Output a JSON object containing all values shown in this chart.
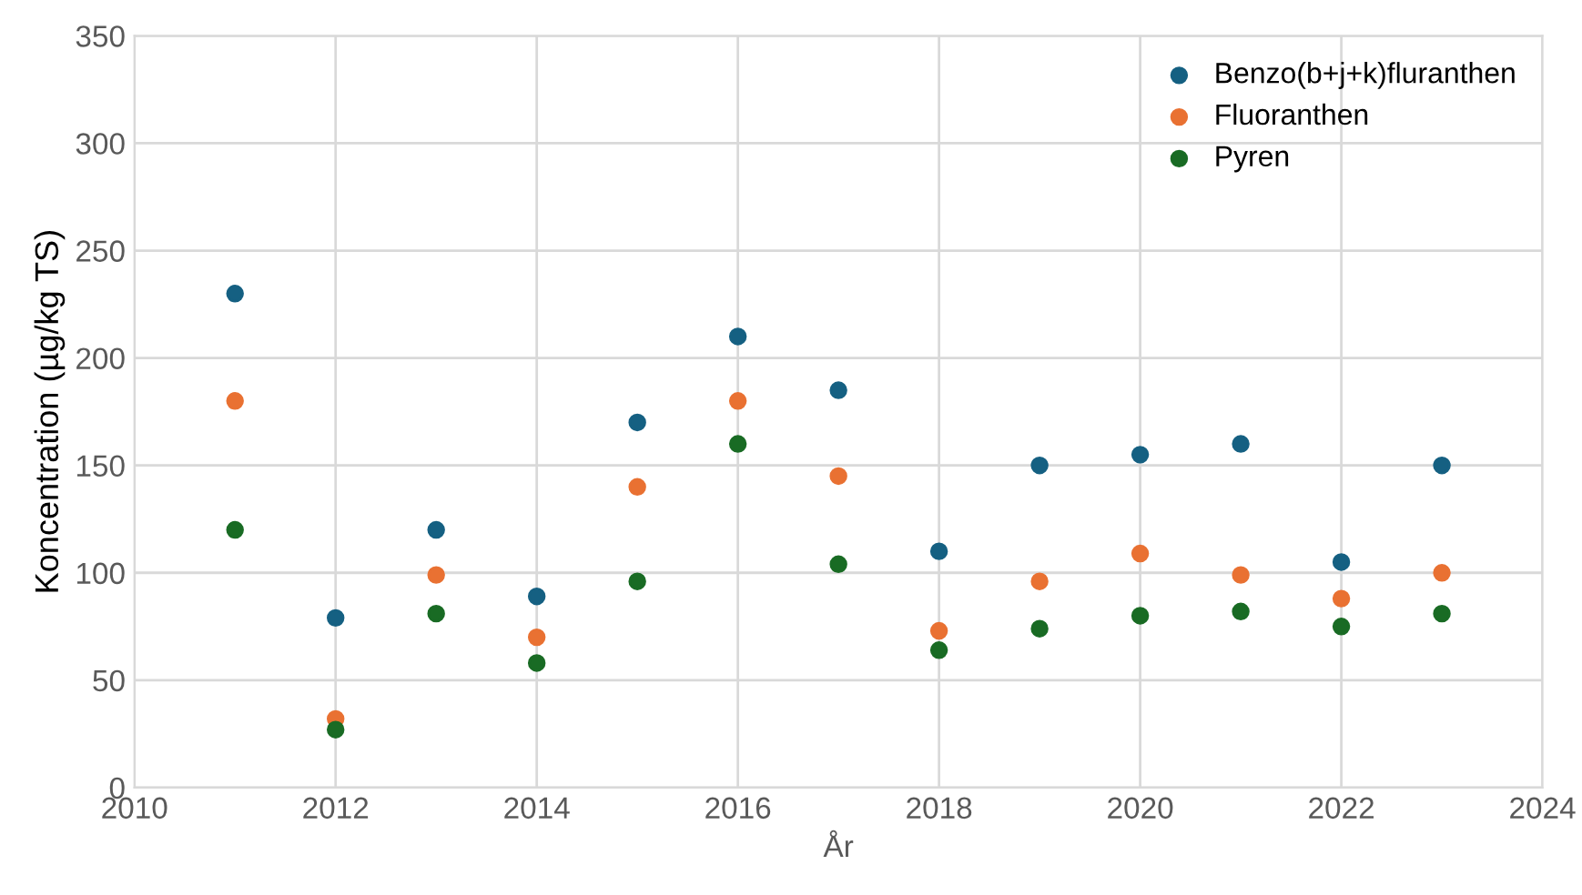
{
  "chart_data": {
    "type": "scatter",
    "xlabel": "År",
    "ylabel": "Koncentration (µg/kg TS)",
    "x": [
      2011,
      2012,
      2013,
      2014,
      2015,
      2016,
      2017,
      2018,
      2019,
      2020,
      2021,
      2022,
      2023
    ],
    "series": [
      {
        "name": "Benzo(b+j+k)fluranthen",
        "color": "#156082",
        "values": [
          230,
          79,
          120,
          89,
          170,
          210,
          185,
          110,
          150,
          155,
          160,
          105,
          150
        ]
      },
      {
        "name": "Fluoranthen",
        "color": "#e97132",
        "values": [
          180,
          32,
          99,
          70,
          140,
          180,
          145,
          73,
          96,
          109,
          99,
          88,
          100
        ]
      },
      {
        "name": "Pyren",
        "color": "#196b24",
        "values": [
          120,
          27,
          81,
          58,
          96,
          160,
          104,
          64,
          74,
          80,
          82,
          75,
          81
        ]
      }
    ],
    "xlim": [
      2010,
      2024
    ],
    "xticks": [
      2010,
      2012,
      2014,
      2016,
      2018,
      2020,
      2022,
      2024
    ],
    "ylim": [
      0,
      350
    ],
    "yticks": [
      0,
      50,
      100,
      150,
      200,
      250,
      300,
      350
    ],
    "grid": true,
    "legend": "top right",
    "marker": "circle"
  }
}
